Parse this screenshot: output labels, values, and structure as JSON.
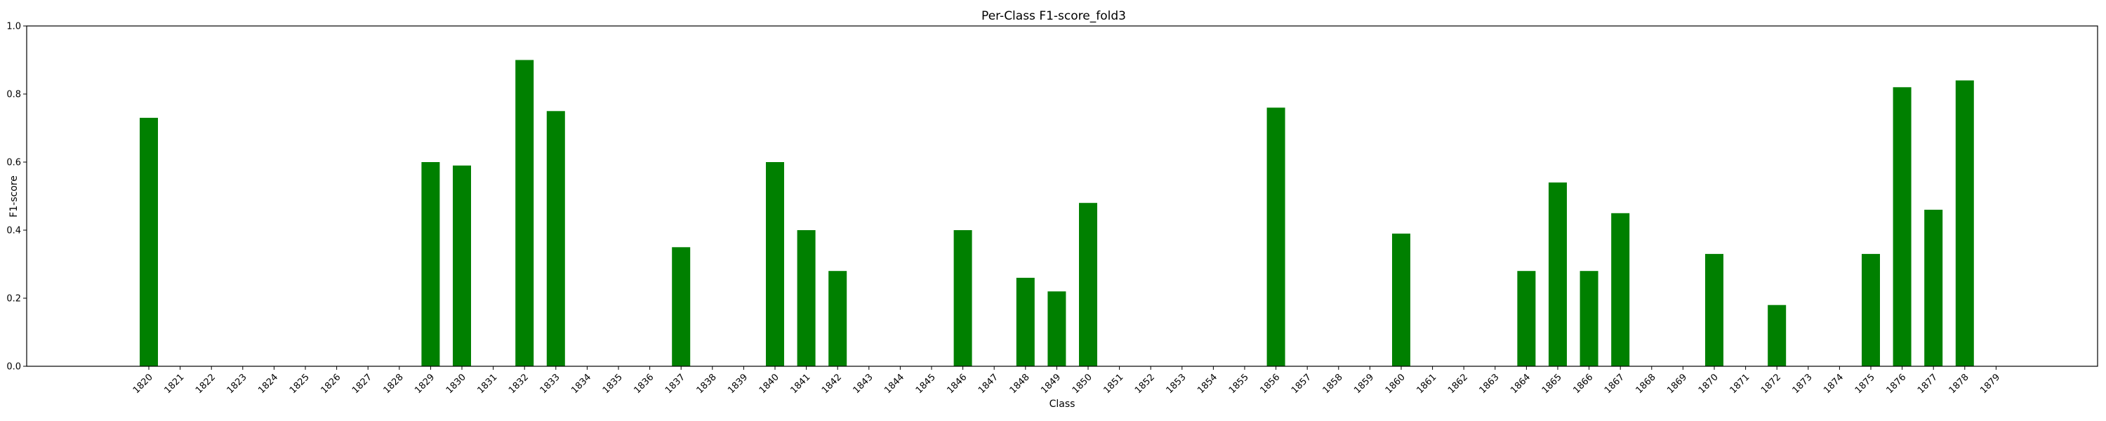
{
  "chart_data": {
    "type": "bar",
    "title": "Per-Class F1-score_fold3",
    "xlabel": "Class",
    "ylabel": "F1-score",
    "ylim": [
      0,
      1.0
    ],
    "yticks": [
      "0.0",
      "0.2",
      "0.4",
      "0.6",
      "0.8",
      "1.0"
    ],
    "grid": false,
    "bar_color": "#008000",
    "categories": [
      "1820",
      "1821",
      "1822",
      "1823",
      "1824",
      "1825",
      "1826",
      "1827",
      "1828",
      "1829",
      "1830",
      "1831",
      "1832",
      "1833",
      "1834",
      "1835",
      "1836",
      "1837",
      "1838",
      "1839",
      "1840",
      "1841",
      "1842",
      "1843",
      "1844",
      "1845",
      "1846",
      "1847",
      "1848",
      "1849",
      "1850",
      "1851",
      "1852",
      "1853",
      "1854",
      "1855",
      "1856",
      "1857",
      "1858",
      "1859",
      "1860",
      "1861",
      "1862",
      "1863",
      "1864",
      "1865",
      "1866",
      "1867",
      "1868",
      "1869",
      "1870",
      "1871",
      "1872",
      "1873",
      "1874",
      "1875",
      "1876",
      "1877",
      "1878",
      "1879"
    ],
    "values": [
      0.73,
      0,
      0,
      0,
      0,
      0,
      0,
      0,
      0,
      0.6,
      0.59,
      0,
      0.9,
      0.75,
      0,
      0,
      0,
      0.35,
      0,
      0,
      0.6,
      0.4,
      0.28,
      0,
      0,
      0,
      0.4,
      0,
      0.26,
      0.22,
      0.48,
      0,
      0,
      0,
      0,
      0,
      0.76,
      0,
      0,
      0,
      0.39,
      0,
      0,
      0,
      0.28,
      0.54,
      0.28,
      0.45,
      0,
      0,
      0.33,
      0,
      0.18,
      0,
      0,
      0.33,
      0.82,
      0.46,
      0.84,
      0
    ]
  }
}
